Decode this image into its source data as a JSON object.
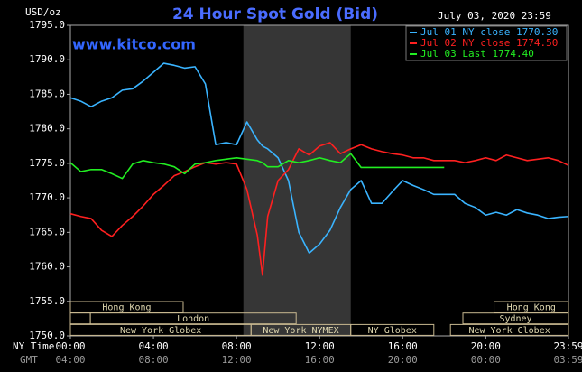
{
  "chart_data": {
    "type": "line",
    "title": "24 Hour Spot Gold (Bid)",
    "source": "www.kitco.com",
    "timestamp": "July 03, 2020 23:59",
    "y_label": "USD/oz",
    "x_label": "NY Time",
    "x2_label": "GMT",
    "x": [
      0,
      0.5,
      1,
      1.5,
      2,
      2.5,
      3,
      3.5,
      4,
      4.5,
      5,
      5.5,
      6,
      6.5,
      7,
      7.5,
      8,
      8.5,
      9,
      9.25,
      9.5,
      10,
      10.5,
      11,
      11.5,
      12,
      12.5,
      13,
      13.5,
      14,
      14.5,
      15,
      15.5,
      16,
      16.5,
      17,
      17.5,
      18,
      18.5,
      19,
      19.5,
      20,
      20.5,
      21,
      21.5,
      22,
      22.5,
      23,
      23.5,
      23.983
    ],
    "xlim": [
      0,
      23.983
    ],
    "xticks": [
      {
        "value": 0,
        "label": "00:00"
      },
      {
        "value": 4,
        "label": "04:00"
      },
      {
        "value": 8,
        "label": "08:00"
      },
      {
        "value": 12,
        "label": "12:00"
      },
      {
        "value": 16,
        "label": "16:00"
      },
      {
        "value": 20,
        "label": "20:00"
      },
      {
        "value": 23.983,
        "label": "23:59"
      }
    ],
    "x2ticks": [
      {
        "value": 0,
        "label": "04:00"
      },
      {
        "value": 4,
        "label": "08:00"
      },
      {
        "value": 8,
        "label": "12:00"
      },
      {
        "value": 12,
        "label": "16:00"
      },
      {
        "value": 16,
        "label": "20:00"
      },
      {
        "value": 20,
        "label": "00:00"
      },
      {
        "value": 23.983,
        "label": "03:59"
      }
    ],
    "ylim": [
      1750,
      1795
    ],
    "yticks": [
      {
        "value": 1750,
        "label": "1750.0"
      },
      {
        "value": 1755,
        "label": "1755.0"
      },
      {
        "value": 1760,
        "label": "1760.0"
      },
      {
        "value": 1765,
        "label": "1765.0"
      },
      {
        "value": 1770,
        "label": "1770.0"
      },
      {
        "value": 1775,
        "label": "1775.0"
      },
      {
        "value": 1780,
        "label": "1780.0"
      },
      {
        "value": 1785,
        "label": "1785.0"
      },
      {
        "value": 1790,
        "label": "1790.0"
      },
      {
        "value": 1795,
        "label": "1795.0"
      }
    ],
    "grid": false,
    "legend": "upper right",
    "shaded_span": [
      8.33,
      13.5
    ],
    "series": [
      {
        "name": "Jul 01 NY close 1770.30",
        "color": "#3ab4ff",
        "values": [
          1784.5,
          1784,
          1783.2,
          1784,
          1784.5,
          1785.6,
          1785.8,
          1786.9,
          1788.2,
          1789.5,
          1789.2,
          1788.8,
          1789,
          1786.5,
          1777.7,
          1778,
          1777.7,
          1781,
          1778.4,
          1777.5,
          1777.1,
          1775.8,
          1772.5,
          1765,
          1762,
          1763.3,
          1765.3,
          1768.6,
          1771.2,
          1772.5,
          1769.2,
          1769.2,
          1770.9,
          1772.5,
          1771.8,
          1771.2,
          1770.5,
          1770.5,
          1770.5,
          1769.2,
          1768.6,
          1767.5,
          1767.9,
          1767.5,
          1768.3,
          1767.8,
          1767.5,
          1767,
          1767.2,
          1767.3
        ]
      },
      {
        "name": "Jul 02 NY close 1774.50",
        "color": "#ff2020",
        "values": [
          1767.7,
          1767.3,
          1767,
          1765.3,
          1764.4,
          1766,
          1767.3,
          1768.8,
          1770.5,
          1771.8,
          1773.2,
          1773.8,
          1774.5,
          1775.1,
          1774.9,
          1775.1,
          1774.9,
          1771.2,
          1764.6,
          1758.8,
          1767.3,
          1772.5,
          1774.1,
          1777.1,
          1776.2,
          1777.5,
          1778,
          1776.4,
          1777.1,
          1777.7,
          1777.1,
          1776.7,
          1776.4,
          1776.2,
          1775.8,
          1775.8,
          1775.4,
          1775.4,
          1775.4,
          1775.1,
          1775.4,
          1775.8,
          1775.4,
          1776.2,
          1775.8,
          1775.4,
          1775.6,
          1775.8,
          1775.4,
          1774.7
        ]
      },
      {
        "name": "Jul 03 Last 1774.40",
        "color": "#22ee22",
        "values": [
          1775.1,
          1773.8,
          1774.1,
          1774.1,
          1773.5,
          1772.8,
          1774.9,
          1775.4,
          1775.1,
          1774.9,
          1774.5,
          1773.5,
          1774.9,
          1775.1,
          1775.4,
          1775.6,
          1775.8,
          1775.6,
          1775.4,
          1775.1,
          1774.5,
          1774.5,
          1775.4,
          1775.1,
          1775.4,
          1775.8,
          1775.4,
          1775.1,
          1776.4,
          1774.4,
          1774.4,
          1774.4,
          1774.4,
          1774.4,
          1774.4,
          1774.4,
          1774.4,
          1774.4,
          null,
          null,
          null,
          null,
          null,
          null,
          null,
          null,
          null,
          null,
          null,
          null
        ]
      }
    ],
    "session_rows": [
      [
        {
          "label": "Hong Kong",
          "start": 0,
          "end": 5.43
        },
        {
          "label": "Hong Kong",
          "start": 20.4,
          "end": 23.983
        }
      ],
      [
        {
          "label": null,
          "start": 0,
          "end": 0.96
        },
        {
          "label": "London",
          "start": 0.96,
          "end": 10.87
        },
        {
          "label": "Sydney",
          "start": 18.9,
          "end": 23.983
        }
      ],
      [
        {
          "label": "New York Globex",
          "start": 0,
          "end": 8.7
        },
        {
          "label": "New York NYMEX",
          "start": 8.7,
          "end": 13.5
        },
        {
          "label": "NY Globex",
          "start": 13.5,
          "end": 17.5
        },
        {
          "label": "New York Globex",
          "start": 18.3,
          "end": 23.983
        }
      ]
    ]
  }
}
